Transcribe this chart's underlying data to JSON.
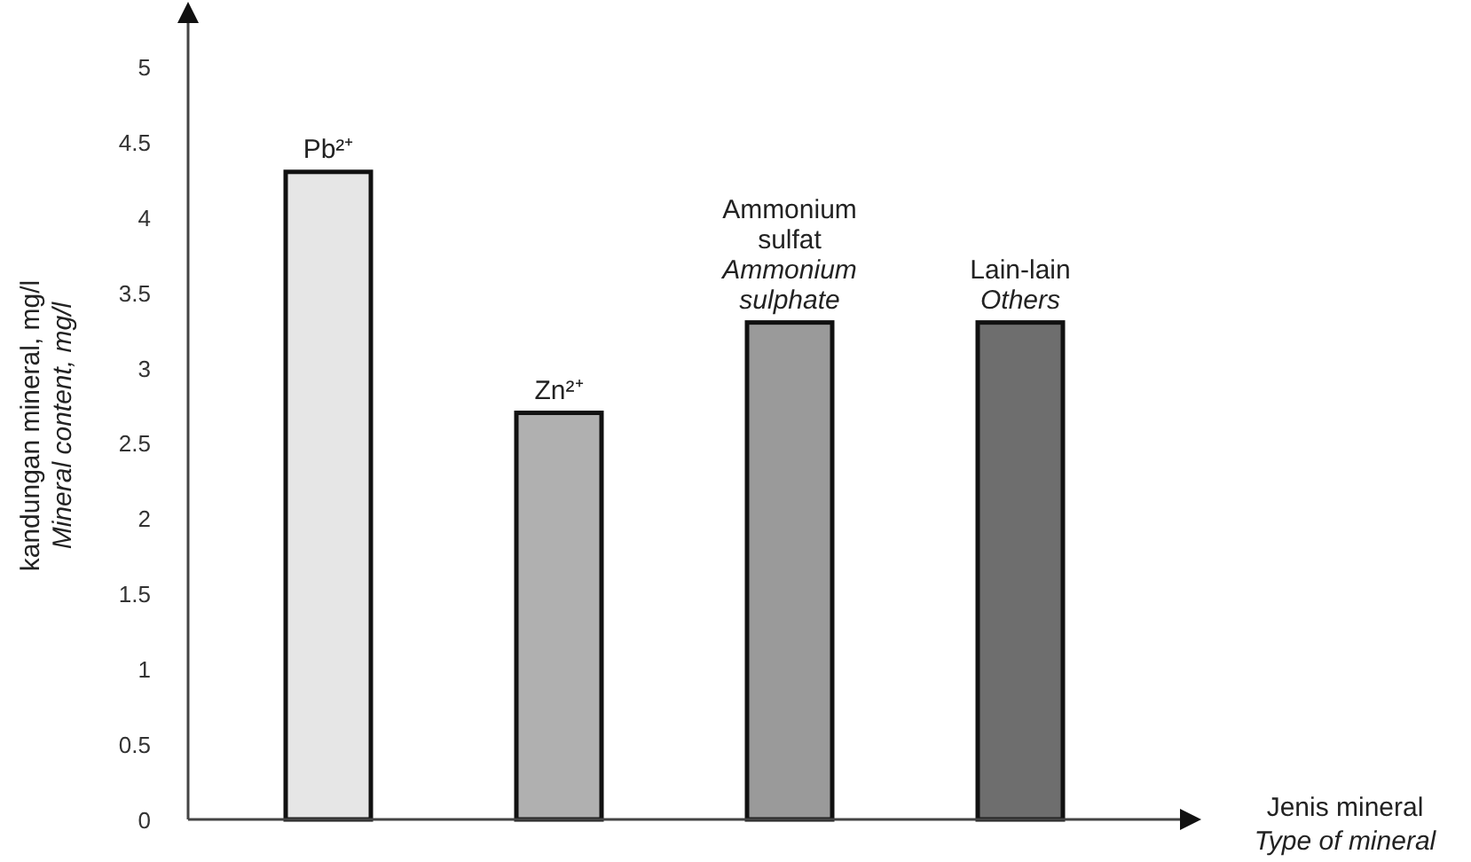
{
  "chart_data": {
    "type": "bar",
    "xlabel": "Jenis mineral\nType of mineral",
    "ylabel": "kandungan mineral, mg/l\nMineral content, mg/l",
    "categories": [
      "Pb²⁺",
      "Zn²⁺",
      "Ammonium sulfat\nAmmonium sulphate",
      "Lain-lain\nOthers"
    ],
    "values": [
      4.3,
      2.7,
      3.3,
      3.3
    ],
    "colors": [
      "#e6e6e6",
      "#b0b0b0",
      "#9a9a9a",
      "#6e6e6e"
    ],
    "ylim": [
      0,
      5.3
    ],
    "yticks": [
      0,
      0.5,
      1,
      1.5,
      2,
      2.5,
      3,
      3.5,
      4,
      4.5,
      5
    ],
    "grid": false
  }
}
